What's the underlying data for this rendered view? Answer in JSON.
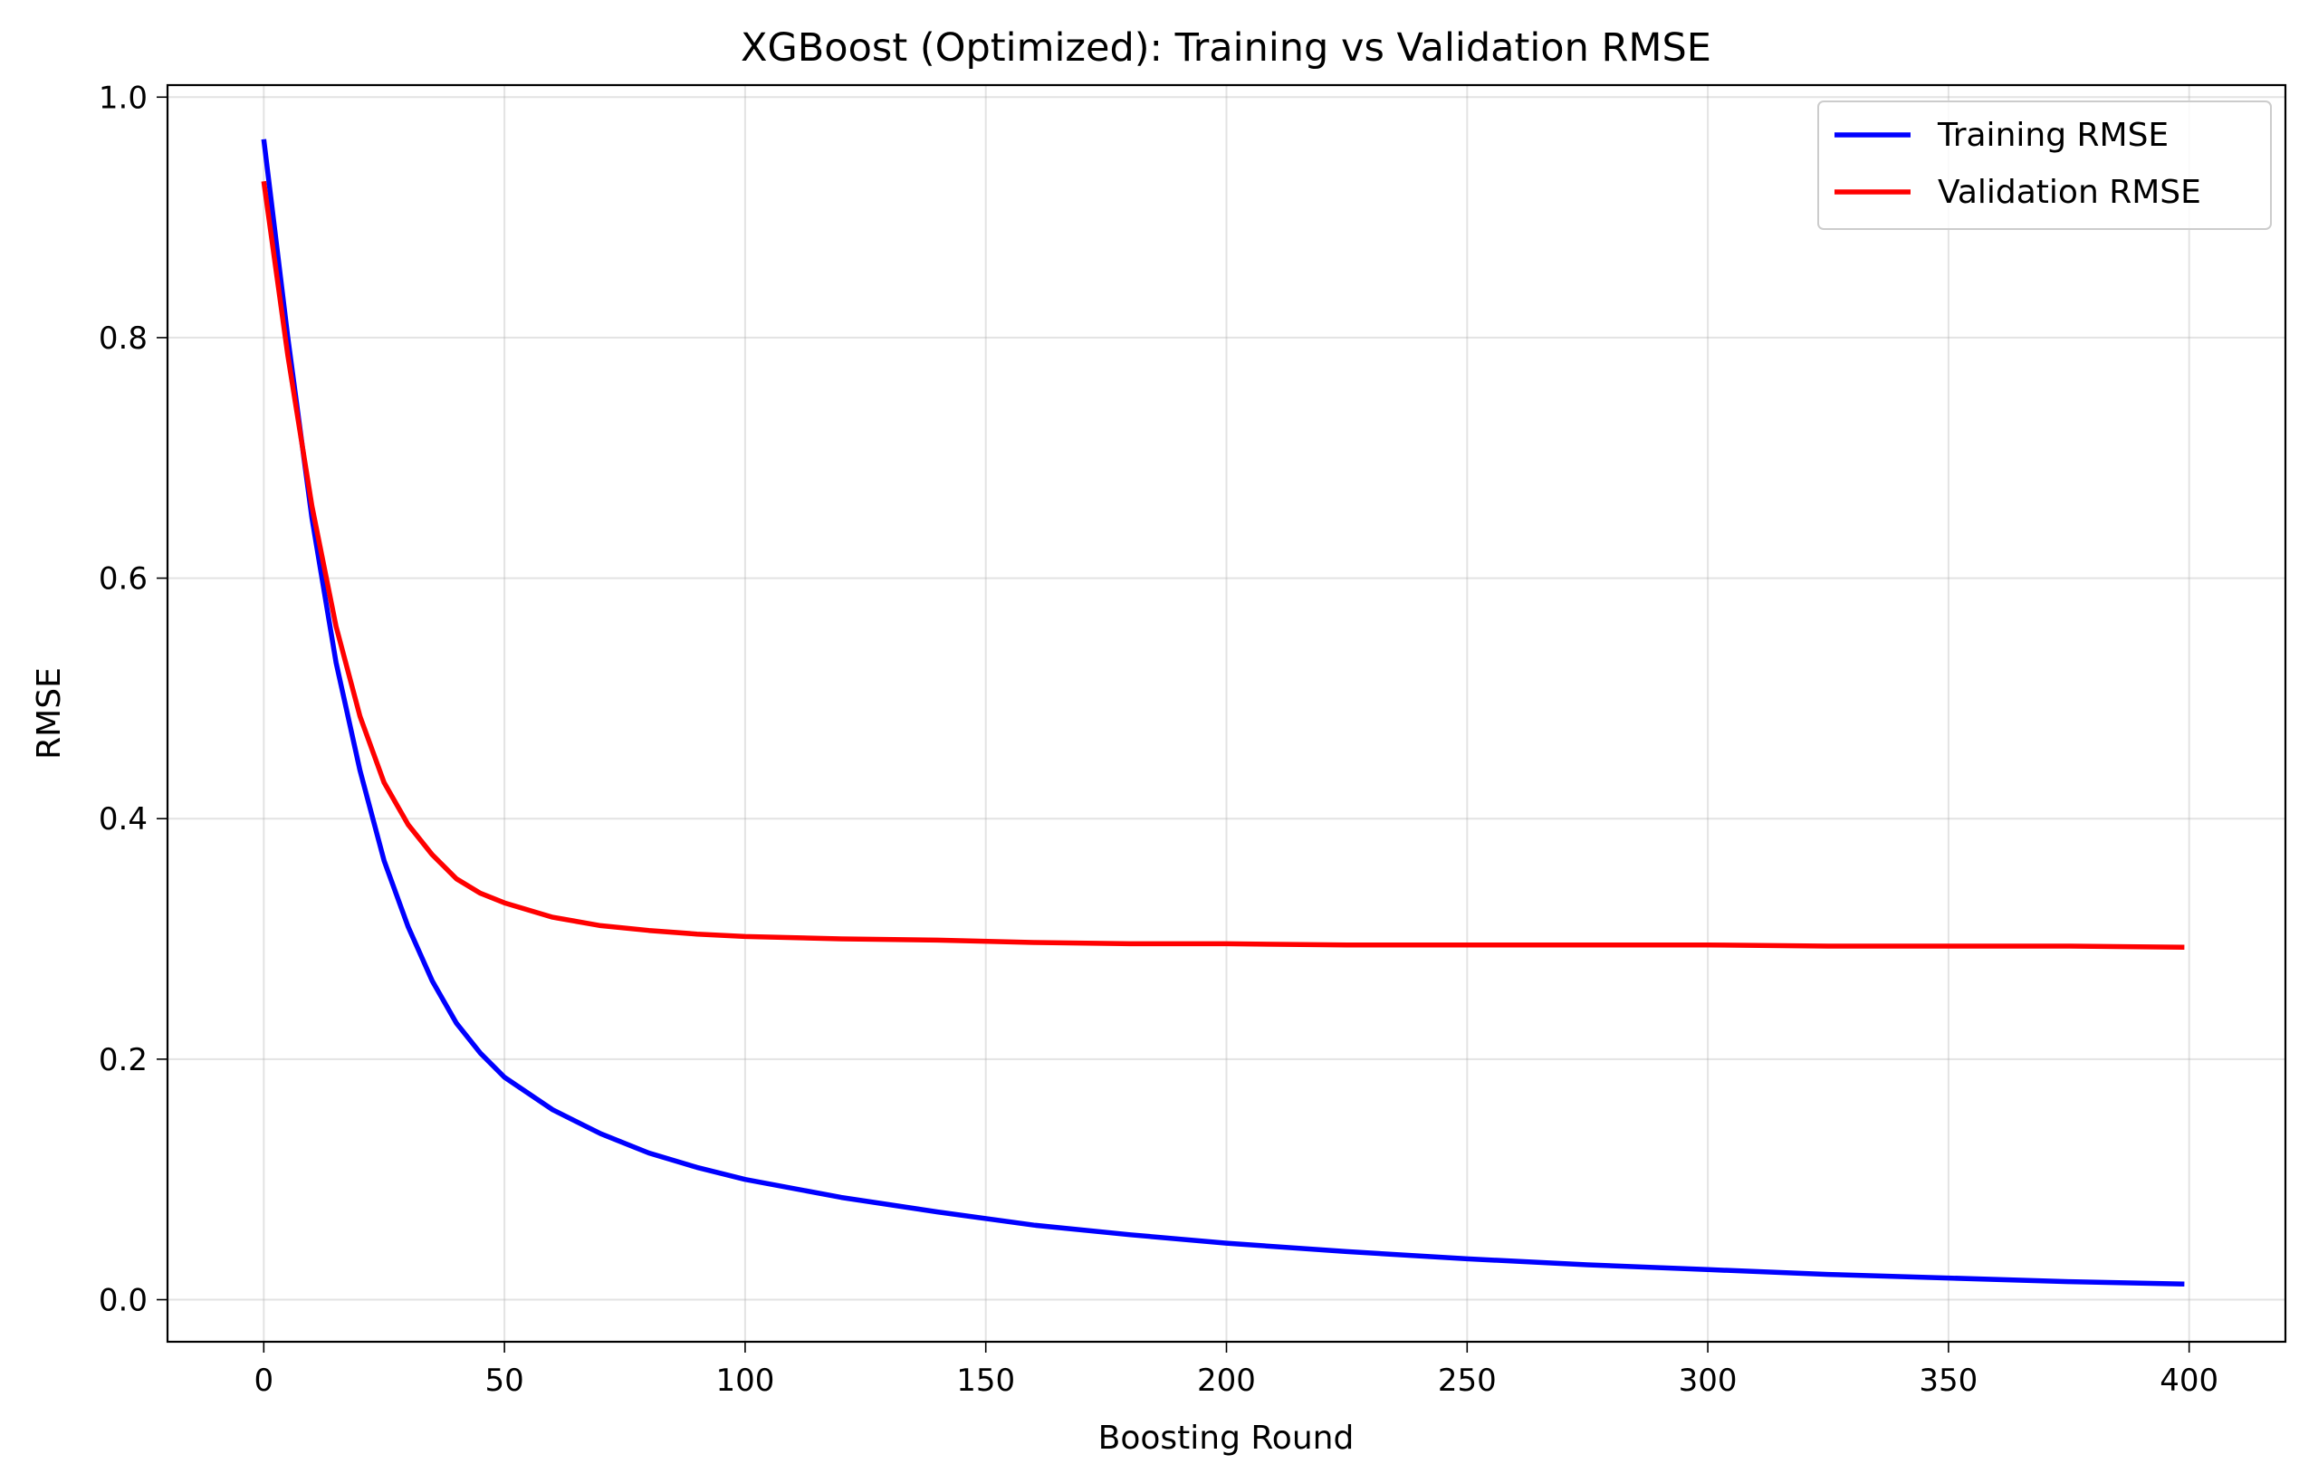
{
  "chart_data": {
    "type": "line",
    "title": "XGBoost (Optimized): Training vs Validation RMSE",
    "xlabel": "Boosting Round",
    "ylabel": "RMSE",
    "xlim": [
      -20,
      420
    ],
    "ylim": [
      -0.035,
      1.01
    ],
    "xticks": [
      0,
      50,
      100,
      150,
      200,
      250,
      300,
      350,
      400
    ],
    "yticks": [
      0.0,
      0.2,
      0.4,
      0.6,
      0.8,
      1.0
    ],
    "xtick_labels": [
      "0",
      "50",
      "100",
      "150",
      "200",
      "250",
      "300",
      "350",
      "400"
    ],
    "ytick_labels": [
      "0.0",
      "0.2",
      "0.4",
      "0.6",
      "0.8",
      "1.0"
    ],
    "grid": true,
    "legend_position": "top-right",
    "series": [
      {
        "name": "Training RMSE",
        "color": "#0000ff",
        "x": [
          0,
          5,
          10,
          15,
          20,
          25,
          30,
          35,
          40,
          45,
          50,
          60,
          70,
          80,
          90,
          100,
          120,
          140,
          160,
          180,
          200,
          225,
          250,
          275,
          300,
          325,
          350,
          375,
          399
        ],
        "y": [
          0.965,
          0.8,
          0.65,
          0.53,
          0.44,
          0.365,
          0.31,
          0.265,
          0.23,
          0.205,
          0.185,
          0.158,
          0.138,
          0.122,
          0.11,
          0.1,
          0.085,
          0.073,
          0.062,
          0.054,
          0.047,
          0.04,
          0.034,
          0.029,
          0.025,
          0.021,
          0.018,
          0.015,
          0.013
        ]
      },
      {
        "name": "Validation RMSE",
        "color": "#ff0000",
        "x": [
          0,
          5,
          10,
          15,
          20,
          25,
          30,
          35,
          40,
          45,
          50,
          60,
          70,
          80,
          90,
          100,
          120,
          140,
          160,
          180,
          200,
          225,
          250,
          275,
          300,
          325,
          350,
          375,
          399
        ],
        "y": [
          0.93,
          0.785,
          0.66,
          0.56,
          0.485,
          0.43,
          0.395,
          0.37,
          0.35,
          0.338,
          0.33,
          0.318,
          0.311,
          0.307,
          0.304,
          0.302,
          0.3,
          0.299,
          0.297,
          0.296,
          0.296,
          0.295,
          0.295,
          0.295,
          0.295,
          0.294,
          0.294,
          0.294,
          0.293
        ]
      }
    ]
  }
}
